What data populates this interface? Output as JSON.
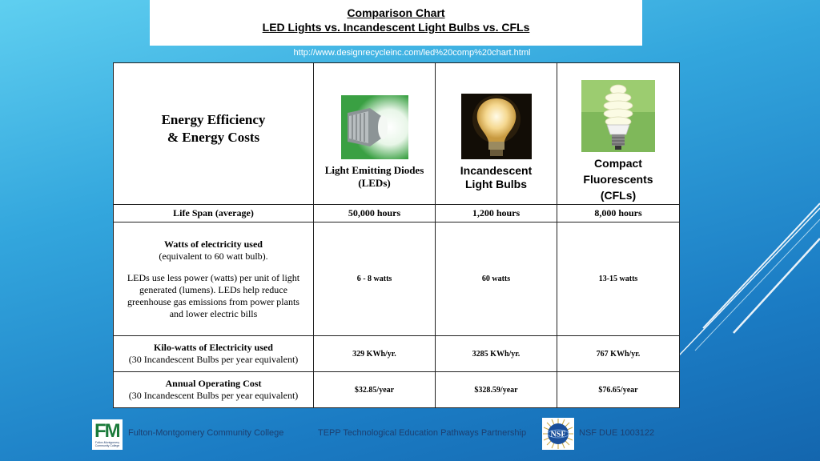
{
  "slide": {
    "title_line1": "Comparison Chart",
    "title_line2": "LED Lights vs. Incandescent Light Bulbs vs. CFLs",
    "source_url": "http://www.designrecycleinc.com/led%20comp%20chart.html"
  },
  "table": {
    "header_title_line1": "Energy Efficiency",
    "header_title_line2": "& Energy Costs",
    "columns": [
      {
        "line1": "Light Emitting Diodes",
        "line2": "(LEDs)",
        "image": "led-bulb-icon"
      },
      {
        "line1": "Incandescent",
        "line2": "Light Bulbs",
        "image": "incandescent-bulb-icon"
      },
      {
        "line1": "Compact",
        "line2": "Fluorescents",
        "line3": "(CFLs)",
        "image": "cfl-bulb-icon"
      }
    ],
    "rows": [
      {
        "label": "Life Span (average)",
        "values": [
          "50,000 hours",
          "1,200 hours",
          "8,000 hours"
        ]
      },
      {
        "label": "Watts of electricity used",
        "sublabel": "(equivalent to 60 watt bulb).",
        "para_line1": "LEDs use less power (watts) per unit of light",
        "para_line2": "generated (lumens).  LEDs help reduce",
        "para_line3": "greenhouse gas emissions from power plants",
        "para_line4": "and lower electric bills",
        "values": [
          "6 - 8 watts",
          "60 watts",
          "13-15 watts"
        ]
      },
      {
        "label": "Kilo-watts of Electricity used",
        "sublabel": "(30 Incandescent Bulbs per year equivalent)",
        "values": [
          "329 KWh/yr.",
          "3285 KWh/yr.",
          "767 KWh/yr."
        ]
      },
      {
        "label": "Annual Operating Cost",
        "sublabel": "(30 Incandescent Bulbs per year equivalent)",
        "values": [
          "$32.85/year",
          "$328.59/year",
          "$76.65/year"
        ]
      }
    ]
  },
  "footer": {
    "college_logo_small": "Fulton-Montgomery Community College",
    "college": "Fulton-Montgomery Community College",
    "partnership": "TEPP Technological Education Pathways Partnership",
    "nsf_logo_text": "NSF",
    "grant": "NSF DUE 1003122"
  },
  "colors": {
    "background_top": "#5fcff0",
    "background_bottom": "#1466ae",
    "footer_text": "#1c3f70"
  }
}
